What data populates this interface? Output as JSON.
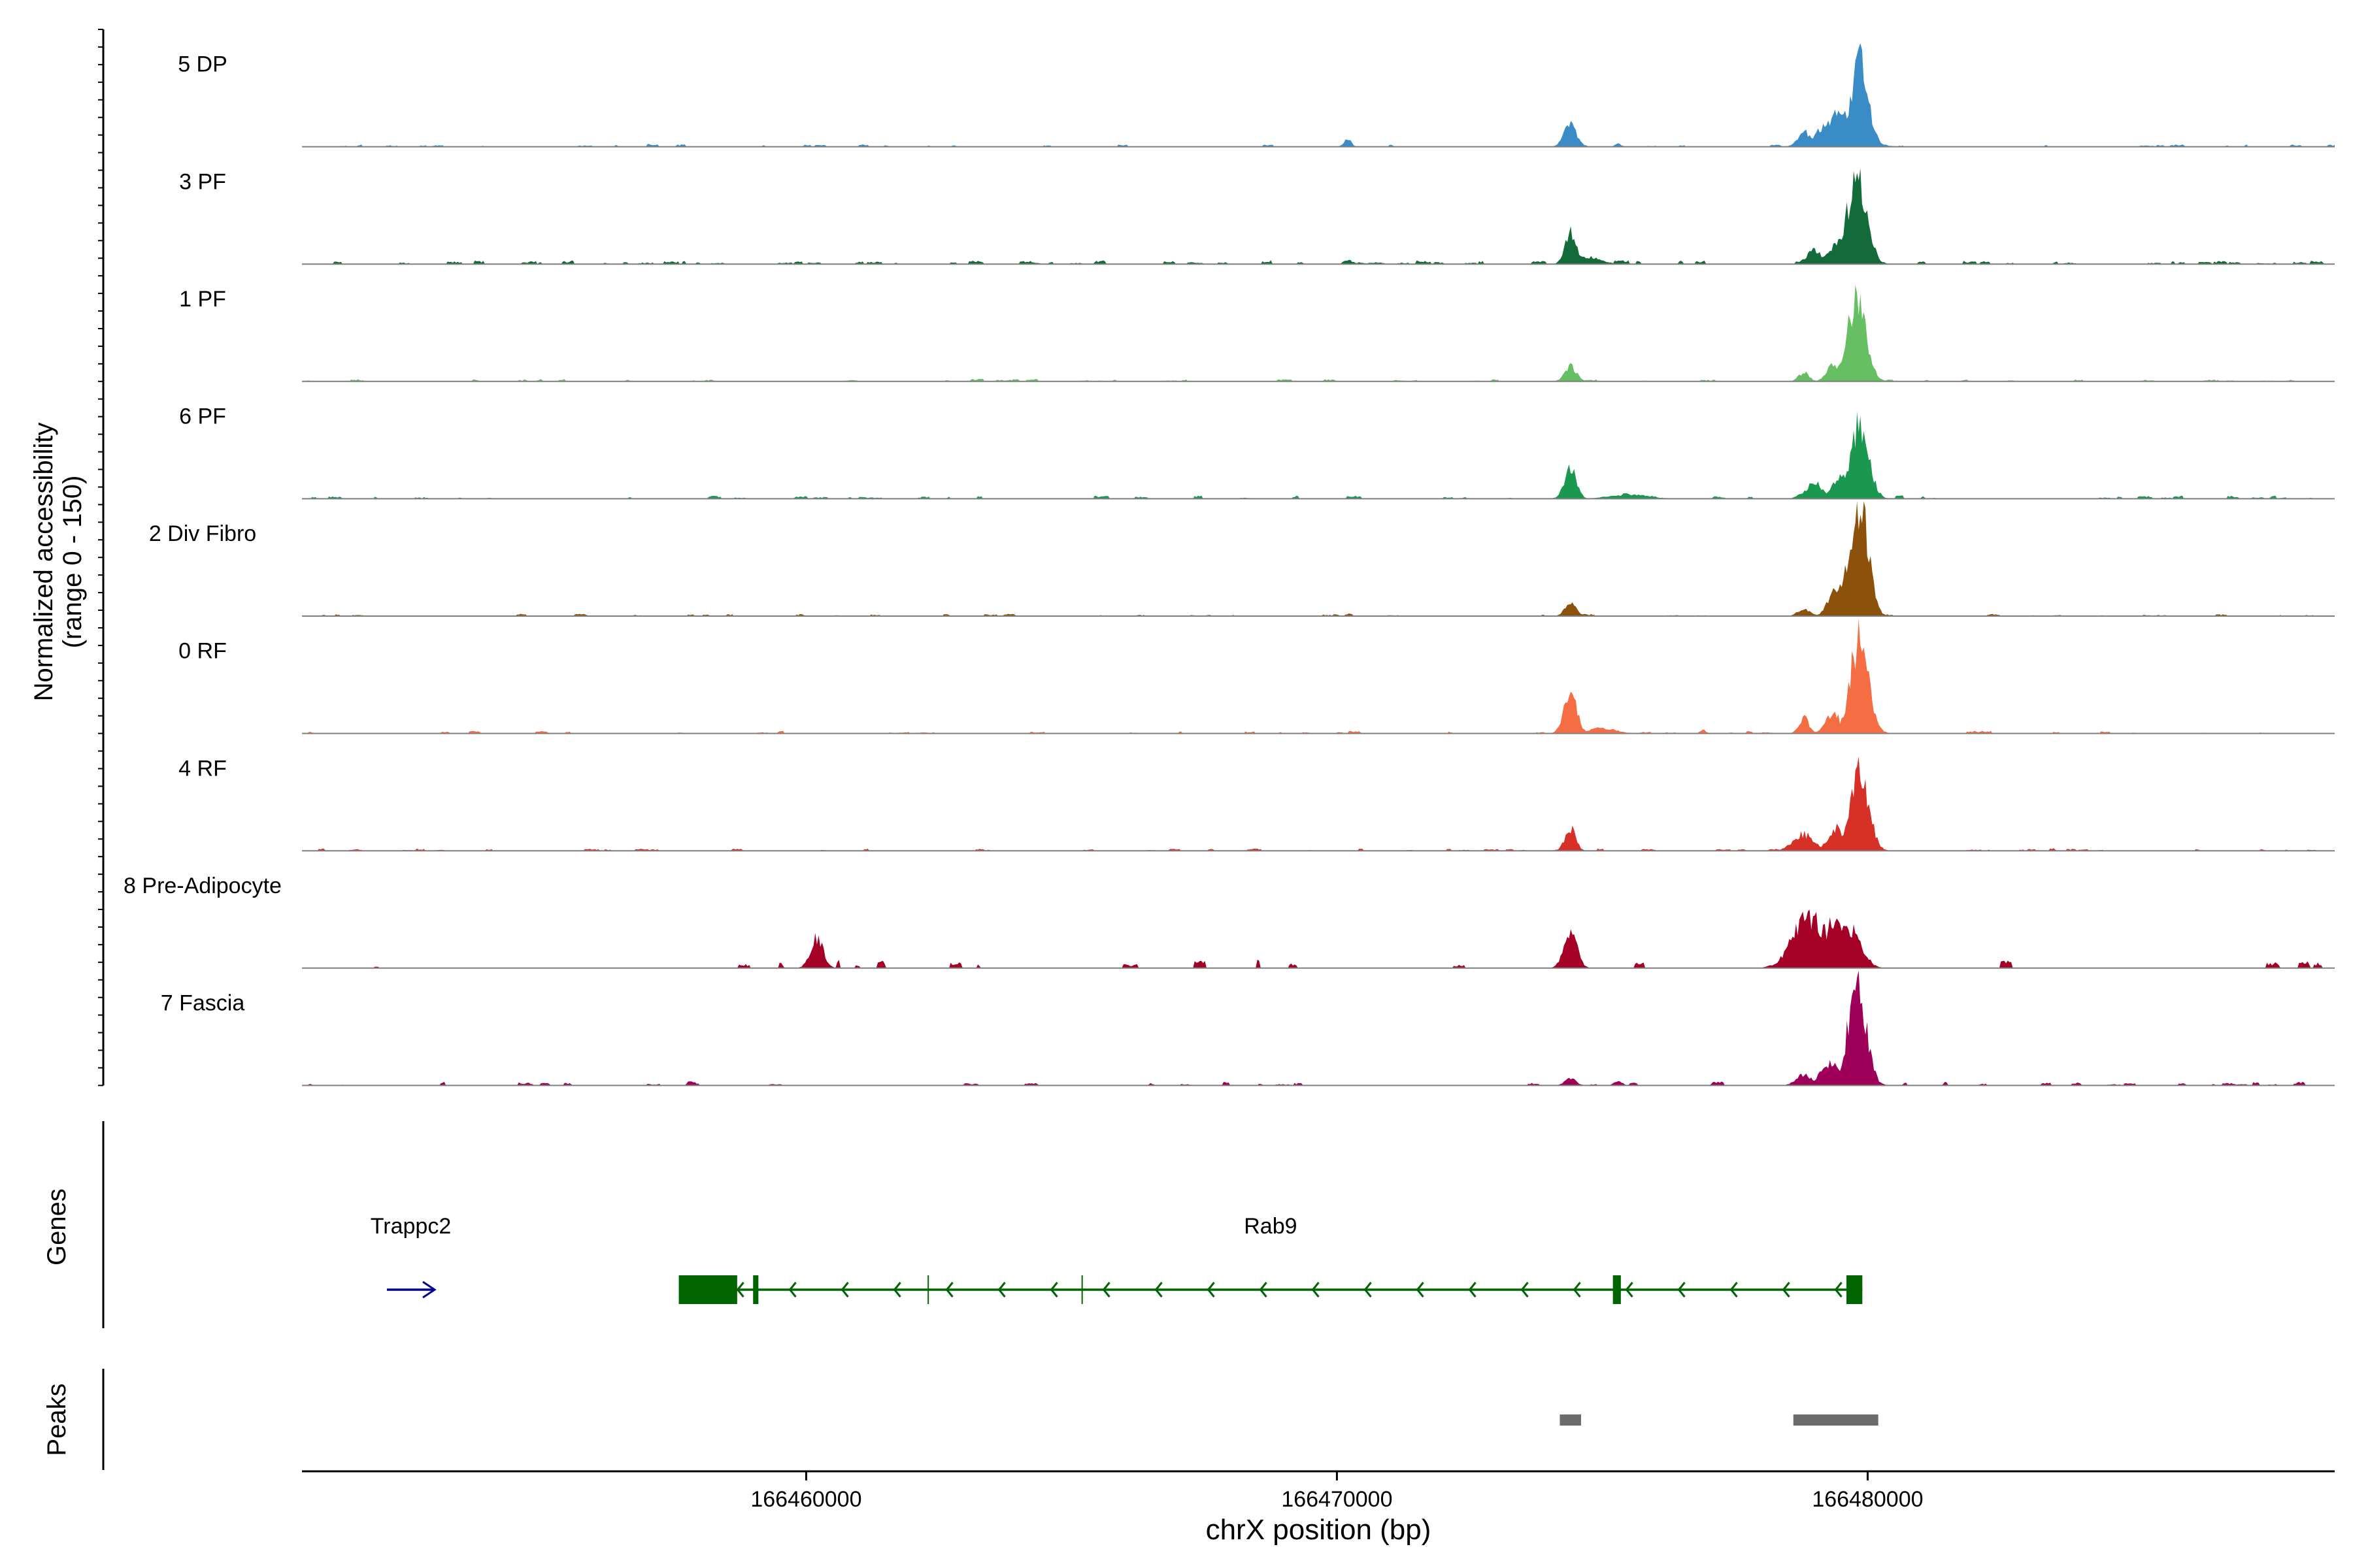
{
  "chart_data": {
    "type": "area",
    "title": "",
    "ylabel": "Normalized accessibility",
    "ylabel_range": "(range 0 - 150)",
    "xlabel": "chrX position (bp)",
    "chromosome": "chrX",
    "xlim": [
      166450500,
      166488800
    ],
    "ylim": [
      0,
      150
    ],
    "x_ticks": [
      166460000,
      166470000,
      166480000
    ],
    "x_tick_labels": [
      "166460000",
      "166470000",
      "166480000"
    ],
    "series": [
      {
        "name": "5 DP",
        "color": "#3a8cc6",
        "seed": 11,
        "background": 2,
        "density": 0.45,
        "peaks": [
          [
            166474400,
            120,
            30
          ],
          [
            166478800,
            120,
            20
          ],
          [
            166479500,
            350,
            45
          ],
          [
            166479850,
            160,
            115
          ],
          [
            166470200,
            70,
            10
          ],
          [
            166475300,
            60,
            4
          ]
        ]
      },
      {
        "name": "3 PF",
        "color": "#126b38",
        "seed": 23,
        "background": 3,
        "density": 0.75,
        "peaks": [
          [
            166474400,
            100,
            45
          ],
          [
            166474700,
            250,
            10
          ],
          [
            166479000,
            150,
            18
          ],
          [
            166479500,
            220,
            30
          ],
          [
            166479800,
            180,
            118
          ],
          [
            166470200,
            60,
            5
          ]
        ]
      },
      {
        "name": "1 PF",
        "color": "#66bf62",
        "seed": 37,
        "background": 2,
        "density": 0.55,
        "peaks": [
          [
            166474400,
            110,
            20
          ],
          [
            166478800,
            100,
            12
          ],
          [
            166479350,
            120,
            25
          ],
          [
            166479800,
            170,
            115
          ]
        ]
      },
      {
        "name": "6 PF",
        "color": "#1a9850",
        "seed": 41,
        "background": 2.5,
        "density": 0.6,
        "peaks": [
          [
            166474400,
            110,
            42
          ],
          [
            166475500,
            350,
            6
          ],
          [
            166479000,
            180,
            20
          ],
          [
            166479500,
            160,
            28
          ],
          [
            166479850,
            170,
            98
          ]
        ]
      },
      {
        "name": "2 Div Fibro",
        "color": "#8c510a",
        "seed": 53,
        "background": 2,
        "density": 0.6,
        "peaks": [
          [
            166474400,
            100,
            18
          ],
          [
            166478800,
            120,
            10
          ],
          [
            166479400,
            140,
            35
          ],
          [
            166479600,
            110,
            65
          ],
          [
            166479850,
            160,
            152
          ]
        ]
      },
      {
        "name": "0 RF",
        "color": "#f46d43",
        "seed": 61,
        "background": 2,
        "density": 0.55,
        "peaks": [
          [
            166474400,
            120,
            54
          ],
          [
            166475000,
            250,
            7
          ],
          [
            166478800,
            90,
            22
          ],
          [
            166479350,
            130,
            28
          ],
          [
            166479850,
            170,
            128
          ],
          [
            166476900,
            50,
            5
          ]
        ]
      },
      {
        "name": "4 RF",
        "color": "#d73027",
        "seed": 71,
        "background": 2,
        "density": 0.55,
        "peaks": [
          [
            166474400,
            100,
            30
          ],
          [
            166478800,
            200,
            22
          ],
          [
            166479400,
            150,
            30
          ],
          [
            166479850,
            170,
            104
          ]
        ]
      },
      {
        "name": "8 Pre-Adipocyte",
        "color": "#a50026",
        "seed": 83,
        "background": 7,
        "density": 0.18,
        "peaks": [
          [
            166474400,
            120,
            55
          ],
          [
            166478900,
            300,
            70
          ],
          [
            166479400,
            300,
            60
          ],
          [
            166479700,
            200,
            48
          ],
          [
            166460200,
            120,
            42
          ]
        ]
      },
      {
        "name": "7 Fascia",
        "color": "#9e0059",
        "seed": 97,
        "background": 3,
        "density": 0.5,
        "peaks": [
          [
            166474400,
            100,
            10
          ],
          [
            166478800,
            150,
            14
          ],
          [
            166479300,
            180,
            30
          ],
          [
            166479800,
            170,
            132
          ],
          [
            166475300,
            80,
            5
          ]
        ]
      }
    ],
    "gene_track": {
      "title": "Genes",
      "genes": [
        {
          "name": "Trappc2",
          "start": 166452100,
          "end": 166453000,
          "strand": "+",
          "color": "#00008b"
        },
        {
          "name": "Rab9",
          "start": 166457600,
          "end": 166479900,
          "strand": "-",
          "color": "#006400",
          "exons": [
            [
              166457600,
              166458700
            ],
            [
              166459000,
              166459100
            ],
            [
              166475200,
              166475350
            ],
            [
              166479600,
              166479900
            ]
          ],
          "marks": [
            166462300,
            166465200
          ]
        }
      ]
    },
    "peak_track": {
      "title": "Peaks",
      "color": "#6b6b6b",
      "peaks": [
        [
          166474200,
          166474600
        ],
        [
          166478600,
          166480200
        ]
      ]
    }
  }
}
